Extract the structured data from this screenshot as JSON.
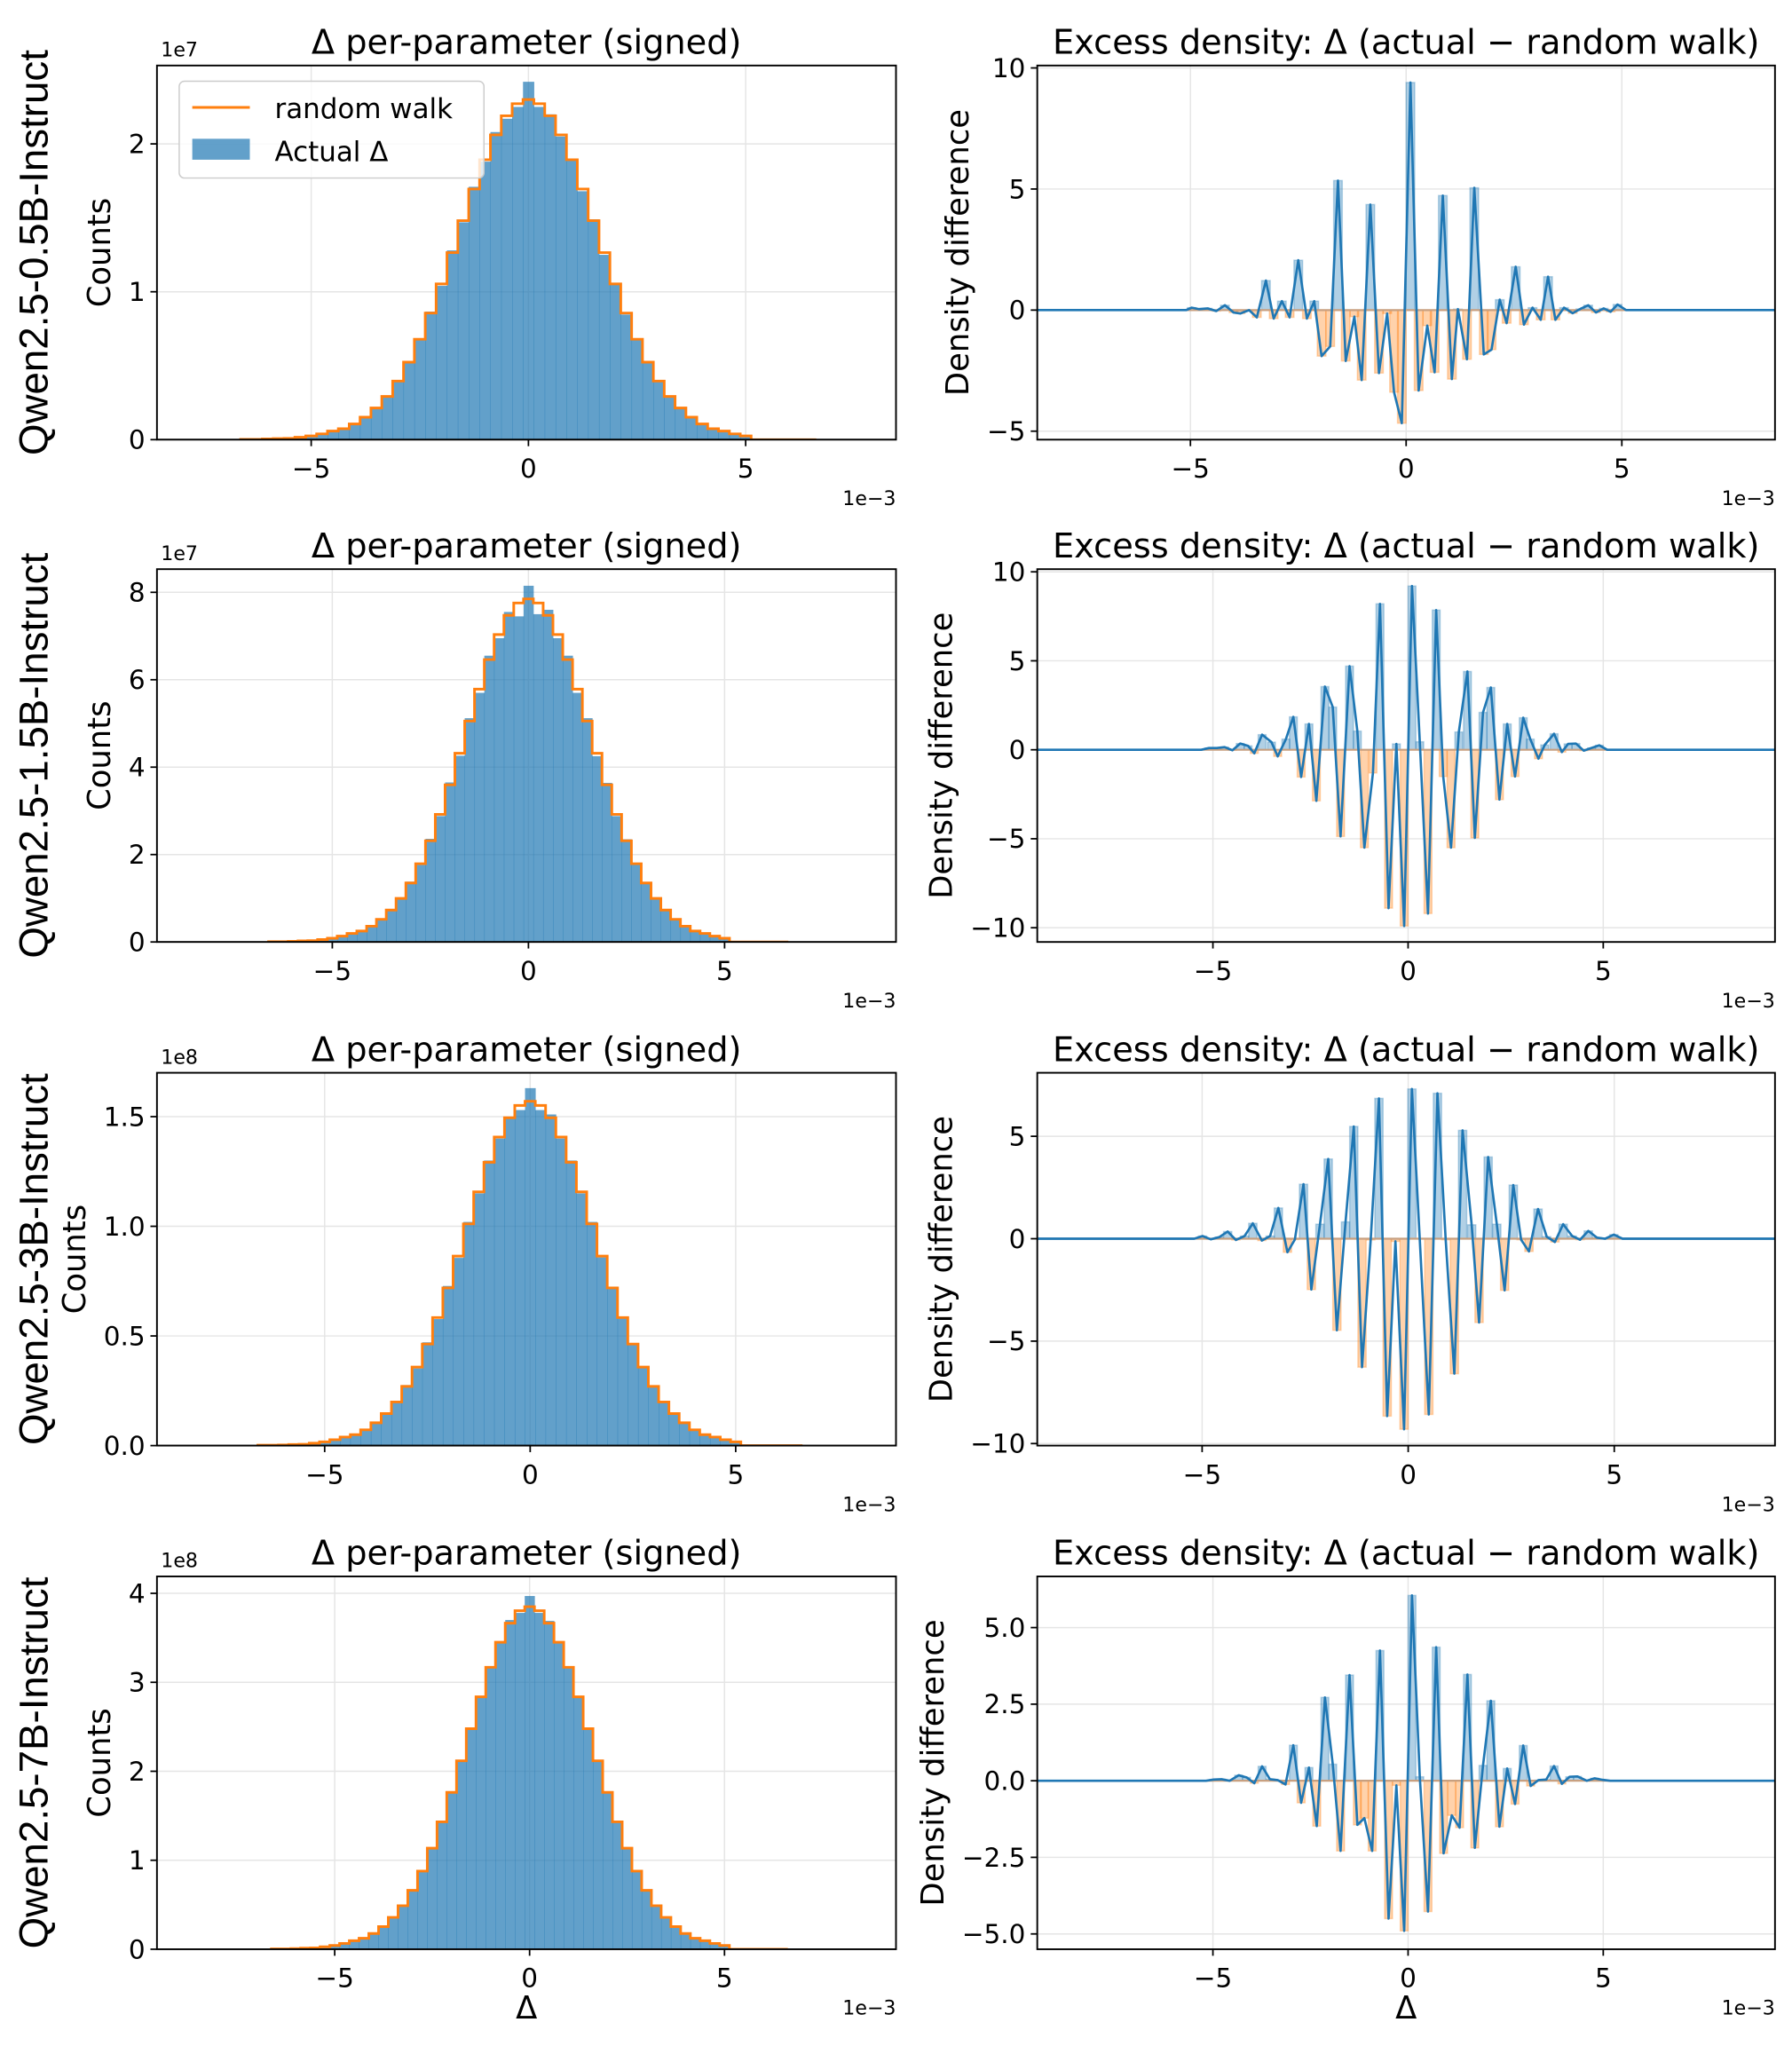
{
  "rows": [
    {
      "label": "Qwen2.5-0.5B-Instruct"
    },
    {
      "label": "Qwen2.5-1.5B-Instruct"
    },
    {
      "label": "Qwen2.5-3B-Instruct"
    },
    {
      "label": "Qwen2.5-7B-Instruct"
    }
  ],
  "colors": {
    "actual": "#1f77b4",
    "random_walk": "#ff7f0e",
    "excess_positive": "#1f77b4",
    "excess_negative": "#ff7f0e",
    "grid": "#e5e5e5"
  },
  "chart_data": [
    {
      "type": "bar",
      "title": "Δ per-parameter (signed)",
      "ylabel": "Counts",
      "xlabel": "",
      "x_offset_label": "1e−3",
      "y_offset_label": "1e7",
      "xlim": [
        -8.55,
        8.46
      ],
      "ylim": [
        0,
        2.53
      ],
      "grid": true,
      "legend_position": "upper-left",
      "legend": [
        {
          "label": "random walk",
          "kind": "line"
        },
        {
          "label": "Actual Δ",
          "kind": "patch"
        }
      ],
      "xticks": [
        -5,
        0,
        5
      ],
      "xticklabels": [
        "−5",
        "0",
        "5"
      ],
      "yticks": [
        0,
        1,
        2
      ],
      "yticklabels": [
        "0",
        "1",
        "2"
      ],
      "bin_width": 0.25,
      "first_bin_center": -6.5,
      "random_walk": [
        0.002,
        0.002,
        0.005,
        0.007,
        0.009,
        0.016,
        0.025,
        0.039,
        0.058,
        0.074,
        0.106,
        0.152,
        0.214,
        0.292,
        0.396,
        0.524,
        0.679,
        0.856,
        1.053,
        1.265,
        1.481,
        1.695,
        1.893,
        2.061,
        2.19,
        2.272,
        2.3,
        2.272,
        2.19,
        2.061,
        1.893,
        1.695,
        1.481,
        1.265,
        1.053,
        0.856,
        0.679,
        0.524,
        0.396,
        0.292,
        0.214,
        0.152,
        0.106,
        0.074,
        0.058,
        0.039,
        0.025,
        0,
        0,
        0,
        0,
        0,
        0
      ],
      "actual": [
        0.002,
        0.002,
        0.005,
        0.007,
        0.009,
        0.016,
        0.025,
        0.039,
        0.058,
        0.074,
        0.106,
        0.155,
        0.21,
        0.296,
        0.39,
        0.53,
        0.672,
        0.866,
        1.04,
        1.28,
        1.47,
        1.71,
        1.88,
        2.08,
        2.17,
        2.25,
        2.42,
        2.25,
        2.2,
        2.05,
        1.9,
        1.68,
        1.49,
        1.25,
        1.06,
        0.846,
        0.686,
        0.518,
        0.4,
        0.288,
        0.218,
        0.149,
        0.108,
        0.072,
        0.058,
        0.039,
        0.025,
        0,
        0,
        0,
        0,
        0,
        0
      ]
    },
    {
      "type": "line",
      "title": "Excess density: Δ (actual − random walk)",
      "ylabel": "Density difference",
      "xlabel": "",
      "x_offset_label": "1e−3",
      "xlim": [
        -8.55,
        8.55
      ],
      "ylim": [
        -5.35,
        10.1
      ],
      "grid": true,
      "xticks": [
        -5,
        0,
        5
      ],
      "xticklabels": [
        "−5",
        "0",
        "5"
      ],
      "yticks": [
        -5,
        0,
        5,
        10
      ],
      "yticklabels": [
        "−5",
        "0",
        "5",
        "10"
      ],
      "bin_width": 0.2,
      "x": [
        -5.1,
        -4.97,
        -4.8,
        -4.6,
        -4.4,
        -4.2,
        -4.0,
        -3.84,
        -3.64,
        -3.46,
        -3.25,
        -3.07,
        -2.88,
        -2.7,
        -2.5,
        -2.3,
        -2.13,
        -1.96,
        -1.76,
        -1.58,
        -1.4,
        -1.2,
        -1.03,
        -0.83,
        -0.63,
        -0.44,
        -0.28,
        -0.1,
        0.1,
        0.29,
        0.49,
        0.66,
        0.85,
        1.06,
        1.2,
        1.41,
        1.58,
        1.8,
        1.98,
        2.17,
        2.33,
        2.54,
        2.73,
        2.93,
        3.12,
        3.29,
        3.46,
        3.66,
        3.86,
        4.04,
        4.22,
        4.4,
        4.58,
        4.74,
        4.9,
        5.1
      ],
      "y": [
        0,
        0.1,
        0.04,
        0.07,
        -0.04,
        0.2,
        -0.1,
        -0.14,
        0,
        -0.3,
        1.22,
        -0.35,
        0.37,
        -0.3,
        2.06,
        -0.35,
        0.37,
        -1.9,
        -1.5,
        5.35,
        -2.1,
        -0.27,
        -2.89,
        4.36,
        -2.6,
        -0.14,
        -3.39,
        -4.67,
        9.4,
        -3.32,
        -0.64,
        -2.57,
        4.73,
        -2.85,
        0.04,
        -2.03,
        5.05,
        -1.83,
        -1.63,
        0.43,
        -0.54,
        1.79,
        -0.6,
        0.1,
        -0.4,
        1.38,
        -0.4,
        0.1,
        -0.13,
        0.05,
        0.2,
        -0.1,
        0.07,
        -0.07,
        0.23,
        0
      ]
    },
    {
      "type": "bar",
      "title": "Δ per-parameter (signed)",
      "ylabel": "Counts",
      "xlabel": "",
      "x_offset_label": "1e−3",
      "y_offset_label": "1e7",
      "xlim": [
        -9.47,
        9.37
      ],
      "ylim": [
        0,
        8.53
      ],
      "grid": true,
      "xticks": [
        -5,
        0,
        5
      ],
      "xticklabels": [
        "−5",
        "0",
        "5"
      ],
      "yticks": [
        0,
        2,
        4,
        6,
        8
      ],
      "yticklabels": [
        "0",
        "2",
        "4",
        "6",
        "8"
      ],
      "bin_width": 0.25,
      "first_bin_center": -6.5,
      "random_walk": [
        0.008,
        0.008,
        0.016,
        0.024,
        0.031,
        0.055,
        0.086,
        0.133,
        0.196,
        0.251,
        0.361,
        0.518,
        0.73,
        0.997,
        1.35,
        1.79,
        2.316,
        2.92,
        3.595,
        4.318,
        5.055,
        5.785,
        6.461,
        7.034,
        7.473,
        7.756,
        7.85,
        7.756,
        7.473,
        7.034,
        6.461,
        5.785,
        5.055,
        4.318,
        3.595,
        2.92,
        2.316,
        1.79,
        1.35,
        0.997,
        0.73,
        0.518,
        0.361,
        0.251,
        0.196,
        0.133,
        0.086,
        0,
        0,
        0,
        0,
        0,
        0
      ],
      "actual": [
        0.008,
        0.008,
        0.016,
        0.024,
        0.031,
        0.055,
        0.086,
        0.133,
        0.196,
        0.251,
        0.37,
        0.51,
        0.745,
        0.98,
        1.38,
        1.76,
        2.36,
        2.88,
        3.65,
        4.26,
        5.12,
        5.7,
        6.55,
        6.95,
        7.55,
        7.45,
        8.15,
        7.5,
        7.6,
        6.95,
        6.55,
        5.7,
        5.12,
        4.25,
        3.64,
        2.88,
        2.35,
        1.77,
        1.37,
        0.98,
        0.74,
        0.51,
        0.365,
        0.248,
        0.196,
        0.133,
        0.086,
        0,
        0,
        0,
        0,
        0,
        0
      ]
    },
    {
      "type": "line",
      "title": "Excess density: Δ (actual − random walk)",
      "ylabel": "Density difference",
      "xlabel": "",
      "x_offset_label": "1e−3",
      "xlim": [
        -9.5,
        9.4
      ],
      "ylim": [
        -10.8,
        10.15
      ],
      "grid": true,
      "xticks": [
        -5,
        0,
        5
      ],
      "xticklabels": [
        "−5",
        "0",
        "5"
      ],
      "yticks": [
        -10,
        -5,
        0,
        5,
        10
      ],
      "yticklabels": [
        "−10",
        "−5",
        "0",
        "5",
        "10"
      ],
      "bin_width": 0.2,
      "x": [
        -5.1,
        -4.9,
        -4.7,
        -4.5,
        -4.3,
        -4.1,
        -3.94,
        -3.74,
        -3.5,
        -3.34,
        -3.13,
        -2.94,
        -2.74,
        -2.54,
        -2.35,
        -2.13,
        -1.93,
        -1.73,
        -1.5,
        -1.3,
        -1.12,
        -0.9,
        -0.72,
        -0.5,
        -0.3,
        -0.1,
        0.1,
        0.3,
        0.51,
        0.72,
        0.9,
        1.1,
        1.3,
        1.52,
        1.71,
        1.92,
        2.12,
        2.34,
        2.54,
        2.74,
        2.95,
        3.13,
        3.34,
        3.5,
        3.74,
        3.94,
        4.1,
        4.3,
        4.5,
        4.7,
        4.9,
        5.1
      ],
      "y": [
        0.1,
        0.1,
        0.15,
        -0.03,
        0.35,
        0.22,
        -0.2,
        0.85,
        0.43,
        -0.37,
        0.6,
        1.85,
        -1.53,
        1.45,
        -2.87,
        3.55,
        2.4,
        -4.87,
        4.7,
        1.05,
        -5.5,
        -1.3,
        8.2,
        -8.9,
        0.33,
        -9.9,
        9.2,
        0.45,
        -9.2,
        7.85,
        -1.5,
        -5.5,
        1.0,
        4.4,
        -4.95,
        2.1,
        3.5,
        -2.8,
        1.45,
        -1.5,
        1.8,
        0.6,
        -0.5,
        0.27,
        0.9,
        -0.13,
        0.33,
        0.35,
        -0.05,
        0.1,
        0.25,
        0
      ]
    },
    {
      "type": "bar",
      "title": "Δ per-parameter (signed)",
      "ylabel": "Counts",
      "xlabel": "",
      "x_offset_label": "1e−3",
      "y_offset_label": "1e8",
      "xlim": [
        -9.08,
        8.9
      ],
      "ylim": [
        0,
        1.7
      ],
      "grid": true,
      "xticks": [
        -5,
        0,
        5
      ],
      "xticklabels": [
        "−5",
        "0",
        "5"
      ],
      "yticks": [
        0,
        0.5,
        1,
        1.5
      ],
      "yticklabels": [
        "0.0",
        "0.5",
        "1.0",
        "1.5"
      ],
      "bin_width": 0.25,
      "first_bin_center": -6.5,
      "random_walk": [
        0.002,
        0.002,
        0.003,
        0.005,
        0.006,
        0.011,
        0.017,
        0.027,
        0.039,
        0.05,
        0.072,
        0.104,
        0.146,
        0.199,
        0.27,
        0.358,
        0.463,
        0.584,
        0.719,
        0.864,
        1.011,
        1.157,
        1.292,
        1.407,
        1.495,
        1.551,
        1.57,
        1.551,
        1.495,
        1.407,
        1.292,
        1.157,
        1.011,
        0.864,
        0.719,
        0.584,
        0.463,
        0.358,
        0.27,
        0.199,
        0.146,
        0.104,
        0.072,
        0.05,
        0.039,
        0.027,
        0.017,
        0,
        0,
        0,
        0,
        0,
        0
      ],
      "actual": [
        0.002,
        0.002,
        0.003,
        0.005,
        0.006,
        0.011,
        0.017,
        0.027,
        0.039,
        0.05,
        0.074,
        0.101,
        0.15,
        0.195,
        0.276,
        0.352,
        0.471,
        0.577,
        0.728,
        0.856,
        1.02,
        1.15,
        1.3,
        1.4,
        1.5,
        1.53,
        1.63,
        1.53,
        1.51,
        1.4,
        1.3,
        1.15,
        1.02,
        0.858,
        0.725,
        0.58,
        0.468,
        0.355,
        0.273,
        0.197,
        0.148,
        0.102,
        0.072,
        0.05,
        0.039,
        0.027,
        0.017,
        0,
        0,
        0,
        0,
        0,
        0
      ]
    },
    {
      "type": "line",
      "title": "Excess density: Δ (actual − random walk)",
      "ylabel": "Density difference",
      "xlabel": "",
      "x_offset_label": "1e−3",
      "xlim": [
        -9.0,
        8.9
      ],
      "ylim": [
        -10.1,
        8.1
      ],
      "grid": true,
      "xticks": [
        -5,
        0,
        5
      ],
      "xticklabels": [
        "−5",
        "0",
        "5"
      ],
      "yticks": [
        -10,
        -5,
        0,
        5
      ],
      "yticklabels": [
        "−10",
        "−5",
        "0",
        "5"
      ],
      "bin_width": 0.2,
      "x": [
        -4.99,
        -4.79,
        -4.58,
        -4.38,
        -4.18,
        -3.97,
        -3.77,
        -3.55,
        -3.35,
        -3.15,
        -2.93,
        -2.75,
        -2.54,
        -2.35,
        -2.14,
        -1.94,
        -1.73,
        -1.52,
        -1.32,
        -1.12,
        -0.91,
        -0.71,
        -0.51,
        -0.31,
        -0.1,
        0.09,
        0.28,
        0.5,
        0.71,
        0.91,
        1.12,
        1.32,
        1.54,
        1.72,
        1.94,
        2.15,
        2.34,
        2.55,
        2.74,
        2.93,
        3.15,
        3.36,
        3.56,
        3.76,
        3.98,
        4.17,
        4.37,
        4.58,
        4.78,
        4.99,
        5.2
      ],
      "y": [
        0.13,
        -0.03,
        0.08,
        0.35,
        -0.06,
        0.13,
        0.75,
        -0.09,
        0.13,
        1.5,
        -0.66,
        -0.04,
        2.66,
        -2.48,
        0.71,
        3.89,
        -4.47,
        0.82,
        5.48,
        -6.27,
        -0.06,
        6.85,
        -8.66,
        -0.13,
        -9.3,
        7.31,
        0.0,
        -8.58,
        7.1,
        -0.05,
        -6.59,
        5.29,
        0.68,
        -4.09,
        3.99,
        0.71,
        -2.52,
        2.62,
        -0.05,
        -0.62,
        1.45,
        0.1,
        -0.16,
        0.71,
        0.13,
        -0.05,
        0.38,
        0.05,
        0.0,
        0.2,
        0
      ]
    },
    {
      "type": "bar",
      "title": "Δ per-parameter (signed)",
      "ylabel": "Counts",
      "xlabel": "Δ",
      "x_offset_label": "1e−3",
      "y_offset_label": "1e8",
      "xlim": [
        -9.56,
        9.4
      ],
      "ylim": [
        0,
        4.19
      ],
      "grid": true,
      "xticks": [
        -5,
        0,
        5
      ],
      "xticklabels": [
        "−5",
        "0",
        "5"
      ],
      "yticks": [
        0,
        1,
        2,
        3,
        4
      ],
      "yticklabels": [
        "0",
        "1",
        "2",
        "3",
        "4"
      ],
      "bin_width": 0.25,
      "first_bin_center": -6.5,
      "random_walk": [
        0.004,
        0.004,
        0.008,
        0.012,
        0.015,
        0.027,
        0.042,
        0.065,
        0.096,
        0.123,
        0.177,
        0.254,
        0.358,
        0.489,
        0.662,
        0.878,
        1.136,
        1.432,
        1.763,
        2.118,
        2.479,
        2.837,
        3.169,
        3.45,
        3.665,
        3.804,
        3.85,
        3.804,
        3.665,
        3.45,
        3.169,
        2.837,
        2.479,
        2.118,
        1.763,
        1.432,
        1.136,
        0.878,
        0.662,
        0.489,
        0.358,
        0.254,
        0.177,
        0.123,
        0.096,
        0.065,
        0.042,
        0,
        0,
        0,
        0,
        0,
        0
      ],
      "actual": [
        0.004,
        0.004,
        0.008,
        0.012,
        0.015,
        0.027,
        0.042,
        0.065,
        0.096,
        0.123,
        0.18,
        0.25,
        0.362,
        0.485,
        0.668,
        0.872,
        1.145,
        1.425,
        1.775,
        2.11,
        2.49,
        2.83,
        3.18,
        3.44,
        3.7,
        3.78,
        3.97,
        3.78,
        3.69,
        3.44,
        3.18,
        2.83,
        2.49,
        2.11,
        1.77,
        1.43,
        1.14,
        0.875,
        0.665,
        0.487,
        0.357,
        0.255,
        0.176,
        0.123,
        0.096,
        0.065,
        0.042,
        0,
        0,
        0,
        0,
        0,
        0
      ]
    },
    {
      "type": "line",
      "title": "Excess density: Δ (actual − random walk)",
      "ylabel": "Density difference",
      "xlabel": "Δ",
      "x_offset_label": "1e−3",
      "xlim": [
        -9.5,
        9.4
      ],
      "ylim": [
        -5.5,
        6.67
      ],
      "grid": true,
      "xticks": [
        -5,
        0,
        5
      ],
      "xticklabels": [
        "−5",
        "0",
        "5"
      ],
      "yticks": [
        -5,
        -2.5,
        0,
        2.5,
        5
      ],
      "yticklabels": [
        "−5.0",
        "−2.5",
        "0.0",
        "2.5",
        "5.0"
      ],
      "bin_width": 0.2,
      "x": [
        -4.98,
        -4.78,
        -4.57,
        -4.34,
        -4.14,
        -3.94,
        -3.74,
        -3.54,
        -3.34,
        -3.14,
        -2.94,
        -2.74,
        -2.54,
        -2.34,
        -2.13,
        -1.93,
        -1.73,
        -1.5,
        -1.3,
        -1.12,
        -0.92,
        -0.72,
        -0.5,
        -0.3,
        -0.1,
        0.1,
        0.3,
        0.51,
        0.72,
        0.91,
        1.12,
        1.32,
        1.52,
        1.71,
        1.92,
        2.12,
        2.34,
        2.54,
        2.74,
        2.95,
        3.14,
        3.34,
        3.54,
        3.74,
        3.94,
        4.14,
        4.34,
        4.58,
        4.78,
        4.98,
        5.18
      ],
      "y": [
        0.04,
        0.05,
        0,
        0.18,
        0.11,
        -0.08,
        0.47,
        0.05,
        0.02,
        -0.12,
        1.16,
        -0.72,
        0.43,
        -1.48,
        2.72,
        0.54,
        -2.29,
        3.45,
        -1.44,
        -1.22,
        -2.29,
        4.25,
        -4.5,
        -0.15,
        -4.9,
        6.05,
        0.13,
        -4.27,
        4.36,
        -2.37,
        -1.13,
        -1.53,
        3.47,
        -2.19,
        0.5,
        2.61,
        -1.5,
        0.4,
        -0.76,
        1.15,
        -0.17,
        0.02,
        0.04,
        0.48,
        -0.1,
        0.13,
        0.14,
        0,
        0.08,
        0.03,
        0
      ]
    }
  ]
}
